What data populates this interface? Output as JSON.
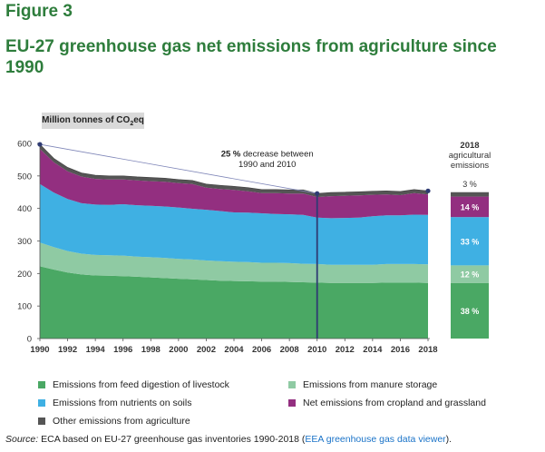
{
  "figure_label": "Figure 3",
  "title": "EU-27 greenhouse gas net emissions from agriculture since 1990",
  "unit": {
    "prefix": "Million tonnes of CO",
    "sub": "2",
    "suffix": "eq"
  },
  "annotation": {
    "bold": "25 %",
    "line1_rest": " decrease between",
    "line2": "1990 and 2010"
  },
  "side_bar": {
    "header": [
      "2018",
      "agricultural",
      "emissions"
    ],
    "segments": [
      {
        "series": "feed",
        "value": 38,
        "label": "38 %"
      },
      {
        "series": "manure",
        "value": 12,
        "label": "12 %"
      },
      {
        "series": "soils",
        "value": 33,
        "label": "33 %"
      },
      {
        "series": "cropland",
        "value": 14,
        "label": "14 %"
      },
      {
        "series": "other",
        "value": 3,
        "label": "3 %"
      }
    ]
  },
  "legend": [
    {
      "series": "feed",
      "label": "Emissions from feed digestion of livestock"
    },
    {
      "series": "manure",
      "label": "Emissions from manure storage"
    },
    {
      "series": "soils",
      "label": "Emissions from nutrients on soils"
    },
    {
      "series": "cropland",
      "label": "Net emissions from cropland and grassland"
    },
    {
      "series": "other",
      "label": "Other emissions from agriculture"
    }
  ],
  "source": {
    "label": "Source:",
    "text": " ECA based on EU-27 greenhouse gas inventories 1990-2018 (",
    "link": "EEA greenhouse gas data viewer",
    "end": ")."
  },
  "colors": {
    "feed": "#4aa864",
    "manure": "#8fcaa3",
    "soils": "#3fb0e3",
    "cropland": "#932f80",
    "other": "#555555",
    "title": "#2e7d3c",
    "marker_line": "#2f3b73"
  },
  "chart_data": {
    "type": "area",
    "stacked": true,
    "x_range": [
      1990,
      2018
    ],
    "xticks": [
      1990,
      1992,
      1994,
      1996,
      1998,
      2000,
      2002,
      2004,
      2006,
      2008,
      2010,
      2012,
      2014,
      2016,
      2018
    ],
    "ylim": [
      0,
      600
    ],
    "yticks": [
      0,
      100,
      200,
      300,
      400,
      500,
      600
    ],
    "grid": false,
    "x": [
      1990,
      1991,
      1992,
      1993,
      1994,
      1995,
      1996,
      1997,
      1998,
      1999,
      2000,
      2001,
      2002,
      2003,
      2004,
      2005,
      2006,
      2007,
      2008,
      2009,
      2010,
      2011,
      2012,
      2013,
      2014,
      2015,
      2016,
      2017,
      2018
    ],
    "series": [
      {
        "key": "feed",
        "name": "Emissions from feed digestion of livestock",
        "values": [
          222,
          212,
          203,
          197,
          194,
          193,
          192,
          190,
          188,
          186,
          184,
          182,
          180,
          178,
          177,
          176,
          175,
          175,
          174,
          173,
          172,
          171,
          171,
          171,
          171,
          172,
          172,
          172,
          171
        ]
      },
      {
        "key": "manure",
        "name": "Emissions from manure storage",
        "values": [
          73,
          69,
          66,
          64,
          63,
          63,
          63,
          62,
          62,
          62,
          61,
          61,
          60,
          60,
          59,
          59,
          58,
          58,
          58,
          57,
          57,
          56,
          56,
          56,
          56,
          57,
          57,
          57,
          57
        ]
      },
      {
        "key": "soils",
        "name": "Emissions from nutrients on soils",
        "values": [
          180,
          168,
          160,
          155,
          155,
          155,
          158,
          158,
          158,
          158,
          158,
          156,
          156,
          154,
          152,
          152,
          152,
          150,
          150,
          150,
          143,
          143,
          144,
          145,
          149,
          150,
          150,
          152,
          152
        ]
      },
      {
        "key": "cropland",
        "name": "Net emissions from cropland and grassland",
        "values": [
          108,
          93,
          85,
          82,
          79,
          78,
          76,
          76,
          76,
          76,
          75,
          76,
          68,
          68,
          69,
          66,
          62,
          64,
          64,
          66,
          63,
          68,
          68,
          68,
          66,
          64,
          62,
          66,
          63
        ]
      },
      {
        "key": "other",
        "name": "Other emissions from agriculture",
        "values": [
          14,
          12,
          12,
          11,
          11,
          11,
          11,
          11,
          11,
          11,
          11,
          11,
          11,
          11,
          11,
          11,
          11,
          11,
          11,
          11,
          11,
          11,
          11,
          11,
          11,
          11,
          11,
          11,
          11
        ]
      }
    ],
    "totals_line": {
      "from": [
        1990,
        597
      ],
      "to": [
        2010,
        446
      ]
    },
    "marker_year": 2010
  }
}
